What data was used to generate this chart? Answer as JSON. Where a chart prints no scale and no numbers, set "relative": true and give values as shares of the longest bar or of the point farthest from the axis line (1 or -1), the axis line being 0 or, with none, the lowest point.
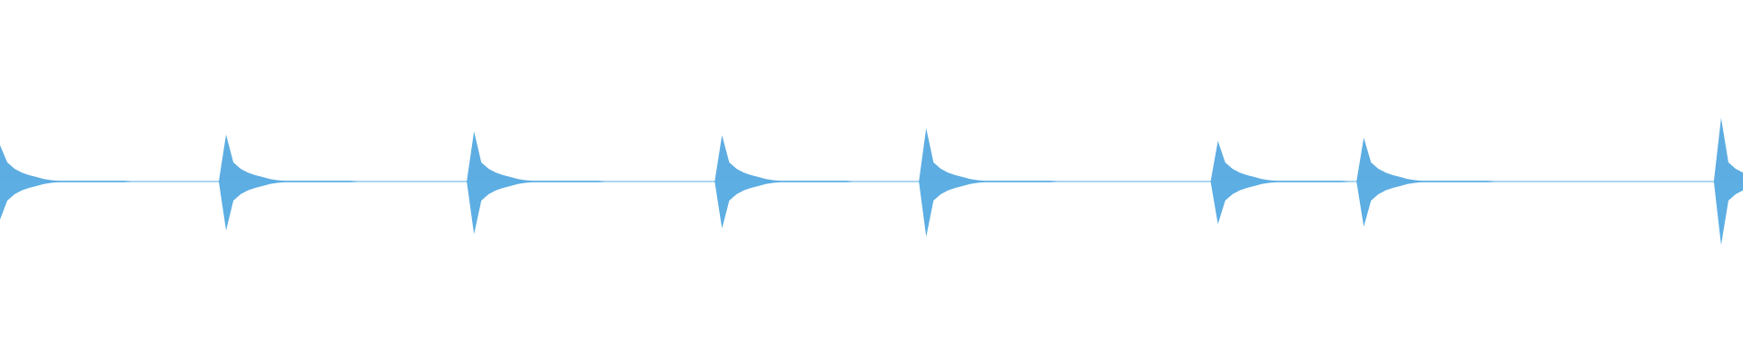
{
  "chart_data": {
    "type": "area",
    "relative": true,
    "ref_lines": [
      {
        "axis": "y",
        "value": 0,
        "color": "#5dade2"
      }
    ],
    "categories": [
      null,
      null,
      null,
      null,
      null,
      null,
      null,
      null,
      null,
      null,
      null,
      null,
      null,
      null,
      null,
      null,
      null,
      null,
      null,
      null,
      null,
      null,
      null,
      null,
      null,
      null,
      null,
      null,
      null,
      null,
      null,
      null,
      null,
      null,
      null,
      null,
      null,
      null,
      null,
      null,
      null,
      null,
      null,
      null,
      null,
      null,
      null,
      null,
      null,
      null,
      null,
      null,
      null,
      null,
      null,
      null,
      null,
      null,
      null,
      null,
      null,
      null,
      null,
      null,
      null,
      null,
      null,
      null,
      null,
      null,
      null,
      null,
      null,
      null,
      null,
      null,
      null,
      null,
      null,
      null,
      null,
      null,
      null,
      null,
      null,
      null,
      null,
      null,
      null,
      null,
      null,
      null,
      null,
      null,
      null,
      null,
      null,
      null,
      null,
      null,
      null,
      null,
      null,
      null,
      null,
      null,
      null,
      null,
      null,
      null,
      null,
      null,
      null,
      null,
      null,
      null,
      null,
      null,
      null,
      null,
      null,
      null,
      null,
      null,
      null,
      null,
      null,
      null,
      null,
      null,
      null,
      null,
      null,
      null,
      null,
      null,
      null,
      null,
      null,
      null,
      null,
      null,
      null,
      null,
      null,
      null,
      null,
      null,
      null,
      null,
      null,
      null,
      null,
      null,
      null,
      null,
      null,
      null,
      null,
      null,
      null,
      null,
      null,
      null,
      null,
      null,
      null,
      null,
      null,
      null,
      null,
      null,
      null,
      null,
      null,
      null,
      null,
      null,
      null,
      null,
      null,
      null,
      null,
      null,
      null,
      null,
      null,
      null,
      null,
      null,
      null,
      null,
      null,
      null,
      null,
      null,
      null,
      null,
      null,
      null,
      null,
      null,
      null,
      null,
      null,
      null,
      null,
      null,
      null,
      null,
      null,
      null,
      null,
      null,
      null,
      null,
      null,
      null,
      null,
      null,
      null,
      null,
      null,
      null,
      null,
      null,
      null,
      null,
      null,
      null,
      null,
      null,
      null,
      null,
      null,
      null,
      null,
      null,
      null,
      null
    ],
    "series": [
      {
        "color": "#5dade2",
        "values": [
          0.57,
          0.3,
          0.2,
          0.14,
          0.1,
          0.07,
          0.04,
          0.02,
          0.01,
          0.01,
          0.01,
          0.01,
          0.01,
          0.01,
          0.01,
          0.01,
          0.01,
          0.01,
          0,
          0,
          0,
          0,
          0,
          0,
          0,
          0,
          0,
          0,
          0,
          0,
          0,
          0.74,
          0.3,
          0.2,
          0.14,
          0.1,
          0.07,
          0.04,
          0.02,
          0.01,
          0.01,
          0.01,
          0.01,
          0.01,
          0.01,
          0.01,
          0.01,
          0.01,
          0.01,
          0,
          0,
          0,
          0,
          0,
          0,
          0,
          0,
          0,
          0,
          0,
          0,
          0,
          0,
          0,
          0,
          0.79,
          0.3,
          0.2,
          0.14,
          0.1,
          0.07,
          0.04,
          0.02,
          0.01,
          0.01,
          0.01,
          0.01,
          0.01,
          0.01,
          0.01,
          0.01,
          0.01,
          0.01,
          0,
          0,
          0,
          0,
          0,
          0,
          0,
          0,
          0,
          0,
          0,
          0,
          0,
          0,
          0,
          0,
          0.73,
          0.3,
          0.2,
          0.14,
          0.1,
          0.07,
          0.04,
          0.02,
          0.01,
          0.01,
          0.01,
          0.01,
          0.01,
          0.01,
          0.01,
          0.01,
          0.01,
          0.01,
          0,
          0,
          0,
          0,
          0,
          0,
          0,
          0,
          0,
          0,
          0.84,
          0.3,
          0.2,
          0.14,
          0.1,
          0.07,
          0.04,
          0.02,
          0.01,
          0.01,
          0.01,
          0.01,
          0.01,
          0.01,
          0.01,
          0.01,
          0.01,
          0.01,
          0,
          0,
          0,
          0,
          0,
          0,
          0,
          0,
          0,
          0,
          0,
          0,
          0,
          0,
          0,
          0,
          0,
          0,
          0,
          0,
          0,
          0,
          0.64,
          0.3,
          0.2,
          0.14,
          0.1,
          0.07,
          0.04,
          0.02,
          0.01,
          0.01,
          0.01,
          0.01,
          0.01,
          0.01,
          0.01,
          0.01,
          0.01,
          0.01,
          0,
          0,
          0.69,
          0.3,
          0.2,
          0.14,
          0.1,
          0.07,
          0.04,
          0.02,
          0.01,
          0.01,
          0.01,
          0.01,
          0.01,
          0.01,
          0.01,
          0.01,
          0.01,
          0.01,
          0,
          0,
          0,
          0,
          0,
          0,
          0,
          0,
          0,
          0,
          0,
          0,
          0,
          0,
          0,
          0,
          0,
          0,
          0,
          0,
          0,
          0,
          0,
          0,
          0,
          0,
          0,
          0,
          0,
          0,
          0,
          1,
          0.3,
          0.2,
          0.14
        ]
      },
      {
        "color": "#5caee3",
        "values": [
          -0.6,
          -0.3,
          -0.2,
          -0.14,
          -0.1,
          -0.07,
          -0.04,
          -0.02,
          -0.01,
          -0.01,
          -0.01,
          -0.01,
          -0.01,
          -0.01,
          -0.01,
          -0.01,
          -0.01,
          -0.01,
          0,
          0,
          0,
          0,
          0,
          0,
          0,
          0,
          0,
          0,
          0,
          0,
          0,
          -0.77,
          -0.3,
          -0.2,
          -0.14,
          -0.1,
          -0.07,
          -0.04,
          -0.02,
          -0.01,
          -0.01,
          -0.01,
          -0.01,
          -0.01,
          -0.01,
          -0.01,
          -0.01,
          -0.01,
          -0.01,
          0,
          0,
          0,
          0,
          0,
          0,
          0,
          0,
          0,
          0,
          0,
          0,
          0,
          0,
          0,
          0,
          -0.83,
          -0.3,
          -0.2,
          -0.14,
          -0.1,
          -0.07,
          -0.04,
          -0.02,
          -0.01,
          -0.01,
          -0.01,
          -0.01,
          -0.01,
          -0.01,
          -0.01,
          -0.01,
          -0.01,
          -0.01,
          0,
          0,
          0,
          0,
          0,
          0,
          0,
          0,
          0,
          0,
          0,
          0,
          0,
          0,
          0,
          0,
          -0.74,
          -0.3,
          -0.2,
          -0.14,
          -0.1,
          -0.07,
          -0.04,
          -0.02,
          -0.01,
          -0.01,
          -0.01,
          -0.01,
          -0.01,
          -0.01,
          -0.01,
          -0.01,
          -0.01,
          -0.01,
          0,
          0,
          0,
          0,
          0,
          0,
          0,
          0,
          0,
          0,
          -0.87,
          -0.3,
          -0.2,
          -0.14,
          -0.1,
          -0.07,
          -0.04,
          -0.02,
          -0.01,
          -0.01,
          -0.01,
          -0.01,
          -0.01,
          -0.01,
          -0.01,
          -0.01,
          -0.01,
          -0.01,
          0,
          0,
          0,
          0,
          0,
          0,
          0,
          0,
          0,
          0,
          0,
          0,
          0,
          0,
          0,
          0,
          0,
          0,
          0,
          0,
          0,
          0,
          -0.67,
          -0.3,
          -0.2,
          -0.14,
          -0.1,
          -0.07,
          -0.04,
          -0.02,
          -0.01,
          -0.01,
          -0.01,
          -0.01,
          -0.01,
          -0.01,
          -0.01,
          -0.01,
          -0.01,
          -0.01,
          0,
          0,
          -0.71,
          -0.3,
          -0.2,
          -0.14,
          -0.1,
          -0.07,
          -0.04,
          -0.02,
          -0.01,
          -0.01,
          -0.01,
          -0.01,
          -0.01,
          -0.01,
          -0.01,
          -0.01,
          -0.01,
          -0.01,
          0,
          0,
          0,
          0,
          0,
          0,
          0,
          0,
          0,
          0,
          0,
          0,
          0,
          0,
          0,
          0,
          0,
          0,
          0,
          0,
          0,
          0,
          0,
          0,
          0,
          0,
          0,
          0,
          0,
          0,
          0,
          -1,
          -0.3,
          -0.2,
          -0.14
        ]
      }
    ]
  }
}
